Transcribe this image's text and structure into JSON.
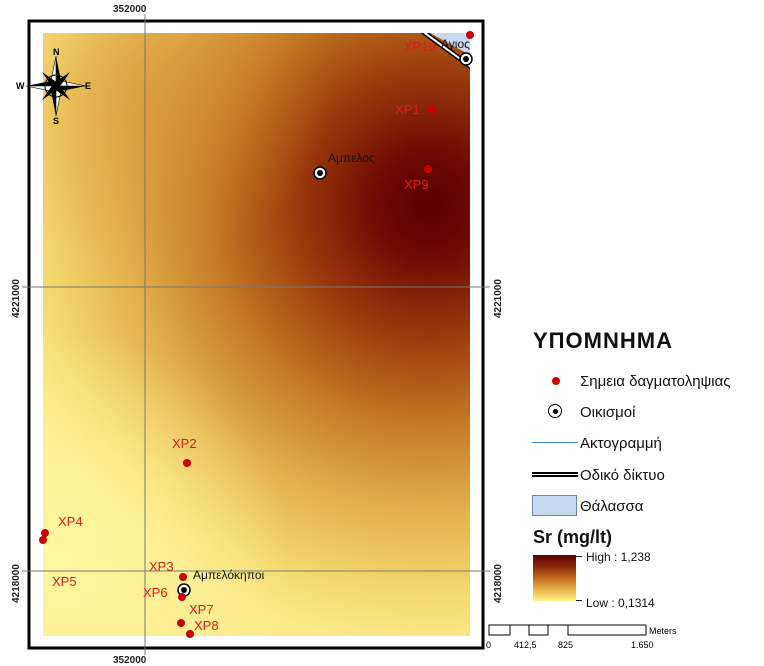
{
  "grid": {
    "x_label": "352000",
    "y_label_top": "4221000",
    "y_label_bottom": "4218000"
  },
  "north_arrow": {
    "n": "N",
    "s": "S",
    "e": "E",
    "w": "W"
  },
  "sampling_points": [
    {
      "id": "XP1",
      "label": "XP1"
    },
    {
      "id": "XP2",
      "label": "XP2"
    },
    {
      "id": "XP3",
      "label": "XP3"
    },
    {
      "id": "XP4",
      "label": "XP4"
    },
    {
      "id": "XP5",
      "label": "XP5"
    },
    {
      "id": "XP6",
      "label": "XP6"
    },
    {
      "id": "XP7",
      "label": "XP7"
    },
    {
      "id": "XP8",
      "label": "XP8"
    },
    {
      "id": "XP9",
      "label": "XP9"
    },
    {
      "id": "XP10",
      "label": "XP10"
    }
  ],
  "settlements": [
    {
      "id": "ampelos",
      "label": "Αμπελος"
    },
    {
      "id": "ampelokipoi",
      "label": "Αμπελόκηποι"
    },
    {
      "id": "agios",
      "label": "Αγιος"
    }
  ],
  "legend": {
    "title": "ΥΠΟΜΝΗΜΑ",
    "items": [
      {
        "name": "sampling-points",
        "label": "Σημεια δαγματοληψιας"
      },
      {
        "name": "settlements",
        "label": "Οικισμοί"
      },
      {
        "name": "coastline",
        "label": "Ακτογραμμή"
      },
      {
        "name": "road-network",
        "label": "Οδικό δίκτυο"
      },
      {
        "name": "sea",
        "label": "Θάλασσα"
      }
    ],
    "raster": {
      "title": "Sr (mg/lt)",
      "high_label": "High :  1,238",
      "low_label": "Low : 0,1314",
      "high_color": "#5a0000",
      "low_color": "#fff28a"
    }
  },
  "scale_bar": {
    "unit": "Meters",
    "ticks": [
      "0",
      "412,5",
      "825",
      "1.650"
    ]
  },
  "colors": {
    "sample_point": "#cc0000",
    "sea": "#c9d9ef",
    "coastline": "#3a8fc8",
    "frame": "#000000"
  }
}
